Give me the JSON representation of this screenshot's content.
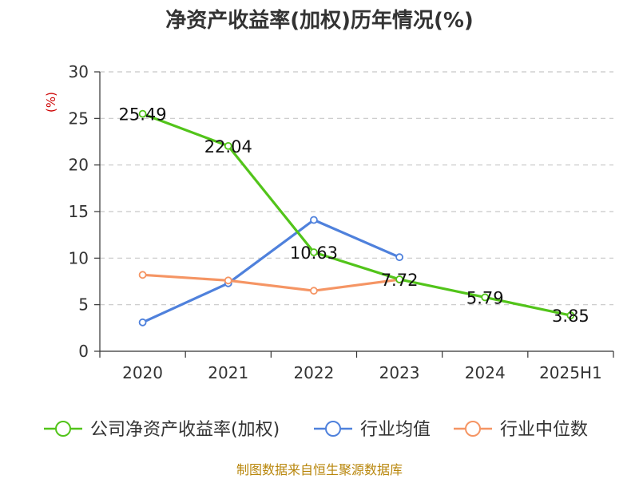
{
  "chart_data": {
    "type": "line",
    "title": "净资产收益率(加权)历年情况(%)",
    "ylabel": "(%)",
    "xlabel": "",
    "categories": [
      "2020",
      "2021",
      "2022",
      "2023",
      "2024",
      "2025H1"
    ],
    "ylim": [
      0,
      30
    ],
    "yticks": [
      0,
      5,
      10,
      15,
      20,
      25,
      30
    ],
    "grid": true,
    "legend_position": "bottom",
    "series": [
      {
        "name": "公司净资产收益率(加权)",
        "color": "#52c41a",
        "values": [
          25.49,
          22.04,
          10.63,
          7.72,
          5.79,
          3.85
        ],
        "labels": [
          "25.49",
          "22.04",
          "10.63",
          "7.72",
          "5.79",
          "3.85"
        ]
      },
      {
        "name": "行业均值",
        "color": "#4f81dc",
        "values": [
          3.1,
          7.3,
          14.1,
          10.1,
          null,
          null
        ]
      },
      {
        "name": "行业中位数",
        "color": "#f59564",
        "values": [
          8.2,
          7.6,
          6.5,
          7.7,
          null,
          null
        ]
      }
    ]
  },
  "source_text": "制图数据来自恒生聚源数据库"
}
